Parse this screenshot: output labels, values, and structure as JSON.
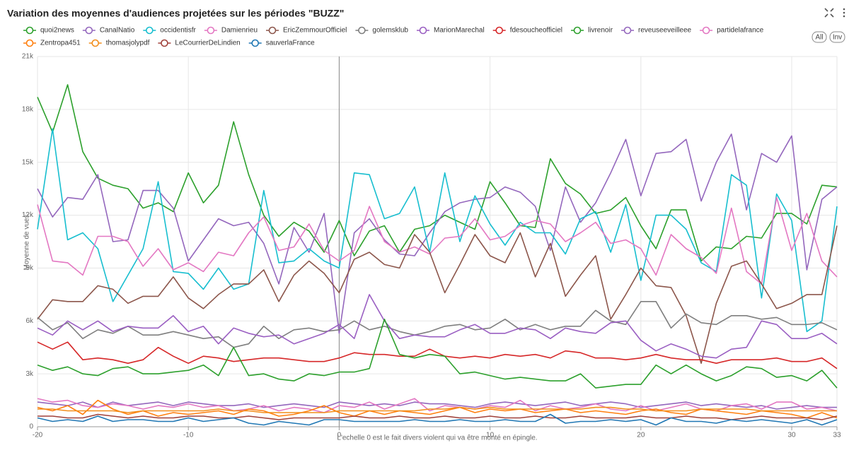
{
  "chart_data": {
    "type": "line",
    "title": "Variation des moyennes d'audiences projetées sur les périodes \"BUZZ\"",
    "y_label": "Moyenne de vues",
    "annotation": "L'echelle 0 est le fait divers violent qui va être monté en épingle.",
    "buttons": [
      "All",
      "Inv"
    ],
    "grid": true,
    "xlim": [
      -20,
      33
    ],
    "xticks": [
      -20,
      -10,
      0,
      10,
      20,
      30,
      33
    ],
    "ylim": [
      0,
      21000
    ],
    "yticks": [
      0,
      {
        "value": 3000,
        "label": "3k"
      },
      {
        "value": 6000,
        "label": "6k"
      },
      {
        "value": 9000,
        "label": "9k"
      },
      {
        "value": 12000,
        "label": "12k"
      },
      {
        "value": 15000,
        "label": "15k"
      },
      {
        "value": 18000,
        "label": "18k"
      },
      {
        "value": 21000,
        "label": "21k"
      }
    ],
    "x": [
      -20,
      -19,
      -18,
      -17,
      -16,
      -15,
      -14,
      -13,
      -12,
      -11,
      -10,
      -9,
      -8,
      -7,
      -6,
      -5,
      -4,
      -3,
      -2,
      -1,
      0,
      1,
      2,
      3,
      4,
      5,
      6,
      7,
      8,
      9,
      10,
      11,
      12,
      13,
      14,
      15,
      16,
      17,
      18,
      19,
      20,
      21,
      22,
      23,
      24,
      25,
      26,
      27,
      28,
      29,
      30,
      31,
      32,
      33
    ],
    "series": [
      {
        "name": "quoi2news",
        "color": "#2ca02c",
        "values": [
          18700,
          16700,
          19400,
          15600,
          14100,
          13700,
          13500,
          12400,
          12700,
          12200,
          14400,
          12700,
          13700,
          17300,
          14300,
          12000,
          10800,
          11600,
          11100,
          9900,
          11700,
          9700,
          11100,
          11400,
          9900,
          11200,
          11400,
          12000,
          11600,
          11200,
          13900,
          12700,
          11400,
          11300,
          15200,
          13800,
          13200,
          12100,
          12300,
          13000,
          11400,
          10100,
          12300,
          12300,
          9400,
          10200,
          10100,
          10800,
          10700,
          12100,
          12100,
          11500,
          13700,
          13600
        ]
      },
      {
        "name": "CanalNatio",
        "color": "#9467bd",
        "values": [
          13500,
          11900,
          13000,
          12900,
          14300,
          10500,
          10600,
          13400,
          13400,
          12400,
          9400,
          10600,
          11800,
          11400,
          11600,
          10400,
          8100,
          11300,
          9900,
          12100,
          5300,
          11000,
          11800,
          10600,
          9800,
          9700,
          11000,
          12200,
          12700,
          12900,
          13000,
          13600,
          13300,
          12500,
          10000,
          13600,
          11600,
          12700,
          14400,
          16300,
          13100,
          15500,
          15600,
          16300,
          12800,
          15000,
          16600,
          12300,
          15500,
          15000,
          16500,
          8900,
          12900,
          13600
        ]
      },
      {
        "name": "occidentisfr",
        "color": "#17becf",
        "values": [
          11200,
          16900,
          10600,
          11000,
          10100,
          7100,
          8600,
          10100,
          13900,
          8800,
          8700,
          7800,
          9000,
          7800,
          8100,
          13400,
          9300,
          9400,
          10100,
          9400,
          9000,
          14400,
          14300,
          11800,
          12100,
          13600,
          9900,
          14400,
          10500,
          13100,
          11500,
          10300,
          11600,
          11000,
          11000,
          9800,
          11800,
          12200,
          9900,
          12600,
          8300,
          12000,
          12000,
          11200,
          9300,
          8800,
          14300,
          13700,
          7300,
          13200,
          11700,
          5400,
          6000,
          12500
        ]
      },
      {
        "name": "Damienrieu",
        "color": "#e377c2",
        "values": [
          12600,
          9400,
          9300,
          8600,
          10800,
          10800,
          10500,
          9100,
          10100,
          8900,
          9300,
          8800,
          9900,
          9700,
          11000,
          11900,
          10000,
          10200,
          11500,
          10000,
          9400,
          10000,
          12500,
          10500,
          9900,
          10200,
          9800,
          10700,
          10800,
          11800,
          10600,
          10800,
          11400,
          11700,
          11500,
          10500,
          11000,
          11600,
          10400,
          10600,
          10100,
          8600,
          10900,
          10100,
          9600,
          8700,
          12400,
          8800,
          8100,
          13000,
          10000,
          12100,
          9400,
          8500
        ]
      },
      {
        "name": "EricZemmourOfficiel",
        "color": "#8c564b",
        "values": [
          6100,
          7200,
          7100,
          7100,
          8000,
          7800,
          7000,
          7400,
          7400,
          8500,
          7300,
          6700,
          7500,
          8100,
          8100,
          8900,
          7100,
          8600,
          9400,
          8700,
          7600,
          9500,
          9900,
          9200,
          9000,
          10900,
          9900,
          7600,
          9200,
          10900,
          9700,
          9300,
          11000,
          8500,
          10400,
          7400,
          8600,
          9700,
          6100,
          7500,
          9000,
          8000,
          7900,
          6300,
          3600,
          7000,
          9100,
          9400,
          8100,
          6700,
          7000,
          7500,
          7500,
          11400
        ]
      },
      {
        "name": "golemsklub",
        "color": "#7f7f7f",
        "values": [
          6200,
          5500,
          5900,
          5000,
          5500,
          5300,
          5700,
          5200,
          5200,
          5400,
          5200,
          5000,
          5100,
          4500,
          4700,
          5700,
          5000,
          5500,
          5600,
          5400,
          5500,
          6000,
          5500,
          5700,
          5400,
          5200,
          5400,
          5700,
          5800,
          5500,
          5600,
          6100,
          5500,
          5800,
          5500,
          5700,
          5700,
          6600,
          6000,
          5800,
          7100,
          7100,
          5600,
          6400,
          5900,
          5800,
          6300,
          6300,
          6100,
          6200,
          5800,
          5800,
          5900,
          5500
        ]
      },
      {
        "name": "MarionMarechal",
        "color": "#9a5fc2",
        "values": [
          5600,
          5200,
          6000,
          5500,
          6000,
          5400,
          5700,
          5600,
          5600,
          6300,
          5400,
          5700,
          4700,
          5600,
          5300,
          5100,
          5200,
          4700,
          5000,
          5300,
          5800,
          5000,
          7500,
          6000,
          5000,
          5200,
          5100,
          5100,
          5500,
          5800,
          5300,
          5300,
          5600,
          5500,
          5000,
          5600,
          5400,
          5300,
          5900,
          6000,
          4900,
          4300,
          4700,
          4400,
          4000,
          3900,
          4400,
          4500,
          6000,
          5800,
          5000,
          5000,
          5300,
          4700
        ]
      },
      {
        "name": "fdesoucheofficiel",
        "color": "#d62728",
        "values": [
          4800,
          4400,
          4800,
          3800,
          3900,
          3800,
          3600,
          3800,
          4500,
          4000,
          3600,
          4000,
          3900,
          3700,
          3800,
          3900,
          3900,
          3800,
          3700,
          3700,
          3900,
          4200,
          4100,
          4100,
          4000,
          4000,
          4400,
          4000,
          3900,
          4000,
          3900,
          4100,
          4000,
          4100,
          3900,
          4300,
          4200,
          3900,
          3900,
          3800,
          3900,
          4100,
          3900,
          3800,
          3800,
          3600,
          3800,
          3800,
          3800,
          3900,
          3700,
          3700,
          3900,
          3300
        ]
      },
      {
        "name": "livrenoir",
        "color": "#2ca02c",
        "values": [
          3500,
          3200,
          3400,
          3000,
          2900,
          3300,
          3400,
          3000,
          3000,
          3100,
          3200,
          3500,
          2900,
          4500,
          2900,
          3000,
          2700,
          2600,
          3000,
          2900,
          3100,
          3100,
          3300,
          6100,
          4100,
          3900,
          4100,
          4000,
          3000,
          3100,
          2900,
          2700,
          2800,
          2700,
          2600,
          2600,
          3000,
          2200,
          2300,
          2400,
          2400,
          3500,
          3000,
          3500,
          3000,
          2600,
          2900,
          3400,
          3300,
          2800,
          2900,
          2600,
          3200,
          2200
        ]
      },
      {
        "name": "reveuseeveilleee",
        "color": "#9467bd",
        "values": [
          1400,
          1300,
          1200,
          1400,
          1100,
          1400,
          1200,
          1300,
          1400,
          1200,
          1400,
          1300,
          1200,
          1200,
          1300,
          1100,
          1200,
          1300,
          1200,
          1100,
          1400,
          1300,
          1200,
          1300,
          1200,
          1400,
          1300,
          1300,
          1200,
          1100,
          1300,
          1400,
          1300,
          1200,
          1300,
          1400,
          1200,
          1300,
          1400,
          1300,
          1100,
          1200,
          1300,
          1400,
          1200,
          1300,
          1200,
          1100,
          1200,
          1000,
          1100,
          1200,
          1100,
          1100
        ]
      },
      {
        "name": "partidelafrance",
        "color": "#e377c2",
        "values": [
          1600,
          1400,
          1500,
          1200,
          1100,
          1300,
          1200,
          1000,
          1200,
          1100,
          1300,
          1100,
          1200,
          900,
          1000,
          1200,
          900,
          1100,
          1000,
          800,
          1200,
          1100,
          1400,
          1000,
          1300,
          1600,
          900,
          1200,
          1100,
          1000,
          1200,
          1100,
          1500,
          900,
          1200,
          1000,
          1100,
          1300,
          1000,
          900,
          1200,
          900,
          1100,
          1300,
          1000,
          900,
          1200,
          1300,
          1000,
          1400,
          1400,
          1000,
          1100,
          900
        ]
      },
      {
        "name": "Zentropa451",
        "color": "#ff7f0e",
        "values": [
          1100,
          900,
          1200,
          700,
          1500,
          1000,
          700,
          900,
          600,
          800,
          700,
          800,
          900,
          700,
          1000,
          900,
          600,
          700,
          900,
          1200,
          800,
          600,
          900,
          700,
          900,
          800,
          700,
          900,
          1100,
          800,
          1000,
          900,
          1000,
          800,
          900,
          1000,
          800,
          900,
          800,
          700,
          900,
          1000,
          800,
          700,
          1000,
          900,
          800,
          700,
          900,
          800,
          700,
          500,
          800,
          500
        ]
      },
      {
        "name": "thomasjolypdf",
        "color": "#f28e1c",
        "values": [
          1000,
          1000,
          900,
          900,
          900,
          900,
          800,
          900,
          900,
          900,
          900,
          900,
          1000,
          900,
          900,
          800,
          800,
          800,
          800,
          800,
          900,
          900,
          900,
          900,
          900,
          900,
          1000,
          1000,
          1100,
          1000,
          1100,
          1000,
          1000,
          1000,
          1000,
          1000,
          1000,
          1100,
          1100,
          1000,
          1000,
          900,
          900,
          900,
          1000,
          1000,
          1000,
          1000,
          900,
          900,
          900,
          900,
          900,
          900
        ]
      },
      {
        "name": "LeCourrierDeLindien",
        "color": "#a0413a",
        "values": [
          600,
          600,
          500,
          500,
          700,
          600,
          500,
          600,
          500,
          500,
          600,
          600,
          500,
          500,
          600,
          500,
          400,
          500,
          500,
          500,
          500,
          600,
          500,
          500,
          600,
          500,
          500,
          600,
          500,
          500,
          600,
          500,
          500,
          600,
          500,
          500,
          600,
          500,
          500,
          500,
          600,
          500,
          500,
          600,
          500,
          500,
          400,
          500,
          600,
          500,
          500,
          500,
          400,
          600
        ]
      },
      {
        "name": "sauverlaFrance",
        "color": "#1f77b4",
        "values": [
          500,
          300,
          400,
          300,
          600,
          300,
          400,
          400,
          300,
          300,
          500,
          300,
          400,
          500,
          200,
          100,
          300,
          200,
          100,
          400,
          400,
          300,
          300,
          300,
          300,
          400,
          300,
          300,
          400,
          300,
          300,
          400,
          300,
          300,
          700,
          200,
          300,
          300,
          400,
          300,
          400,
          100,
          500,
          300,
          300,
          200,
          400,
          300,
          400,
          300,
          200,
          400,
          100,
          400
        ]
      }
    ]
  }
}
